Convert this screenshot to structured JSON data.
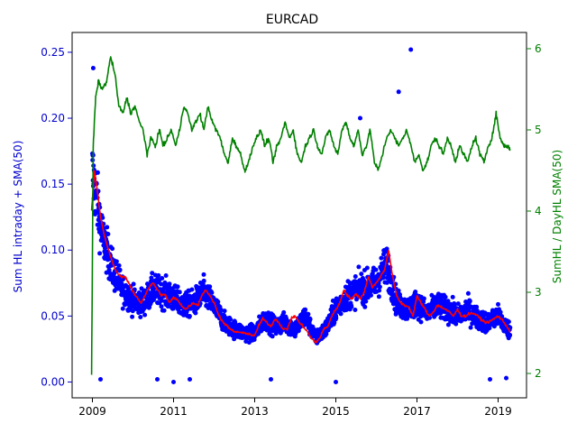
{
  "chart_data": {
    "type": "scatter",
    "title": "EURCAD",
    "xlabel": "",
    "x_ticks": [
      "2009",
      "2011",
      "2013",
      "2015",
      "2017",
      "2019"
    ],
    "xlim": [
      2008.5,
      2019.7
    ],
    "left_axis": {
      "ylabel": "Sum HL intraday + SMA(50)",
      "color": "#0000cc",
      "ylim": [
        -0.012,
        0.265
      ],
      "ticks": [
        "0.00",
        "0.05",
        "0.10",
        "0.15",
        "0.20",
        "0.25"
      ]
    },
    "right_axis": {
      "ylabel": "SumHL / DayHL SMA(50)",
      "color": "#008000",
      "ylim": [
        1.7,
        6.2
      ],
      "ticks": [
        "2",
        "3",
        "4",
        "5",
        "6"
      ]
    },
    "series": [
      {
        "axis": "left",
        "kind": "scatter",
        "color": "#0000ff",
        "trend_x": [
          2009.0,
          2009.1,
          2009.25,
          2009.5,
          2009.75,
          2010.0,
          2010.25,
          2010.5,
          2010.75,
          2011.0,
          2011.25,
          2011.5,
          2011.75,
          2012.0,
          2012.25,
          2012.5,
          2012.75,
          2013.0,
          2013.25,
          2013.5,
          2013.75,
          2014.0,
          2014.25,
          2014.5,
          2014.75,
          2015.0,
          2015.25,
          2015.5,
          2015.75,
          2016.0,
          2016.25,
          2016.5,
          2016.75,
          2017.0,
          2017.25,
          2017.5,
          2017.75,
          2018.0,
          2018.25,
          2018.5,
          2018.75,
          2019.0,
          2019.3
        ],
        "trend_y": [
          0.16,
          0.14,
          0.11,
          0.085,
          0.07,
          0.062,
          0.06,
          0.07,
          0.068,
          0.063,
          0.058,
          0.06,
          0.068,
          0.058,
          0.045,
          0.04,
          0.037,
          0.037,
          0.048,
          0.042,
          0.045,
          0.04,
          0.05,
          0.033,
          0.04,
          0.055,
          0.065,
          0.07,
          0.072,
          0.075,
          0.09,
          0.06,
          0.055,
          0.06,
          0.052,
          0.058,
          0.055,
          0.05,
          0.055,
          0.048,
          0.045,
          0.05,
          0.038
        ]
      },
      {
        "axis": "left",
        "kind": "line",
        "color": "#ff0000",
        "x": [
          2008.98,
          2009.05,
          2009.1,
          2009.2,
          2009.3,
          2009.4,
          2009.5,
          2009.6,
          2009.7,
          2009.8,
          2009.9,
          2010.0,
          2010.1,
          2010.2,
          2010.3,
          2010.4,
          2010.5,
          2010.6,
          2010.7,
          2010.8,
          2010.9,
          2011.0,
          2011.1,
          2011.2,
          2011.3,
          2011.4,
          2011.5,
          2011.6,
          2011.7,
          2011.8,
          2011.9,
          2012.0,
          2012.1,
          2012.2,
          2012.3,
          2012.4,
          2012.5,
          2012.6,
          2012.7,
          2012.8,
          2012.9,
          2013.0,
          2013.1,
          2013.2,
          2013.3,
          2013.4,
          2013.5,
          2013.6,
          2013.7,
          2013.8,
          2013.9,
          2014.0,
          2014.1,
          2014.2,
          2014.3,
          2014.4,
          2014.5,
          2014.6,
          2014.7,
          2014.8,
          2014.9,
          2015.0,
          2015.1,
          2015.2,
          2015.3,
          2015.4,
          2015.5,
          2015.6,
          2015.7,
          2015.8,
          2015.9,
          2016.0,
          2016.1,
          2016.2,
          2016.3,
          2016.4,
          2016.5,
          2016.6,
          2016.7,
          2016.8,
          2016.9,
          2017.0,
          2017.1,
          2017.2,
          2017.3,
          2017.4,
          2017.5,
          2017.6,
          2017.7,
          2017.8,
          2017.9,
          2018.0,
          2018.1,
          2018.2,
          2018.3,
          2018.4,
          2018.5,
          2018.6,
          2018.7,
          2018.8,
          2018.9,
          2019.0,
          2019.1,
          2019.2,
          2019.3
        ],
        "y": [
          0.13,
          0.16,
          0.15,
          0.125,
          0.11,
          0.1,
          0.09,
          0.083,
          0.08,
          0.08,
          0.075,
          0.068,
          0.064,
          0.06,
          0.066,
          0.072,
          0.075,
          0.07,
          0.066,
          0.066,
          0.06,
          0.064,
          0.062,
          0.058,
          0.055,
          0.058,
          0.06,
          0.058,
          0.066,
          0.07,
          0.065,
          0.06,
          0.052,
          0.046,
          0.043,
          0.04,
          0.038,
          0.038,
          0.037,
          0.037,
          0.036,
          0.035,
          0.043,
          0.048,
          0.045,
          0.042,
          0.048,
          0.045,
          0.04,
          0.04,
          0.048,
          0.05,
          0.045,
          0.042,
          0.038,
          0.033,
          0.03,
          0.033,
          0.04,
          0.042,
          0.05,
          0.055,
          0.06,
          0.07,
          0.065,
          0.063,
          0.067,
          0.063,
          0.068,
          0.08,
          0.072,
          0.075,
          0.08,
          0.085,
          0.1,
          0.08,
          0.065,
          0.06,
          0.058,
          0.057,
          0.05,
          0.065,
          0.06,
          0.055,
          0.05,
          0.053,
          0.058,
          0.057,
          0.055,
          0.053,
          0.05,
          0.055,
          0.05,
          0.05,
          0.052,
          0.052,
          0.05,
          0.047,
          0.045,
          0.046,
          0.048,
          0.05,
          0.047,
          0.043,
          0.038
        ]
      },
      {
        "axis": "right",
        "kind": "line",
        "color": "#008000",
        "x": [
          2008.98,
          2009.02,
          2009.08,
          2009.15,
          2009.25,
          2009.35,
          2009.45,
          2009.55,
          2009.65,
          2009.75,
          2009.85,
          2009.95,
          2010.05,
          2010.15,
          2010.25,
          2010.35,
          2010.45,
          2010.55,
          2010.65,
          2010.75,
          2010.85,
          2010.95,
          2011.05,
          2011.15,
          2011.25,
          2011.35,
          2011.45,
          2011.55,
          2011.65,
          2011.75,
          2011.85,
          2011.95,
          2012.05,
          2012.15,
          2012.25,
          2012.35,
          2012.45,
          2012.55,
          2012.65,
          2012.75,
          2012.85,
          2012.95,
          2013.05,
          2013.15,
          2013.25,
          2013.35,
          2013.45,
          2013.55,
          2013.65,
          2013.75,
          2013.85,
          2013.95,
          2014.05,
          2014.15,
          2014.25,
          2014.35,
          2014.45,
          2014.55,
          2014.65,
          2014.75,
          2014.85,
          2014.95,
          2015.05,
          2015.15,
          2015.25,
          2015.35,
          2015.45,
          2015.55,
          2015.65,
          2015.75,
          2015.85,
          2015.95,
          2016.05,
          2016.15,
          2016.25,
          2016.35,
          2016.45,
          2016.55,
          2016.65,
          2016.75,
          2016.85,
          2016.95,
          2017.05,
          2017.15,
          2017.25,
          2017.35,
          2017.45,
          2017.55,
          2017.65,
          2017.75,
          2017.85,
          2017.95,
          2018.05,
          2018.15,
          2018.25,
          2018.35,
          2018.45,
          2018.55,
          2018.65,
          2018.75,
          2018.85,
          2018.95,
          2019.05,
          2019.15,
          2019.25,
          2019.3
        ],
        "y": [
          2.0,
          4.8,
          5.4,
          5.6,
          5.5,
          5.6,
          5.9,
          5.7,
          5.3,
          5.2,
          5.4,
          5.2,
          5.3,
          5.1,
          5.0,
          4.7,
          4.9,
          4.8,
          5.0,
          4.8,
          4.9,
          5.0,
          4.8,
          5.0,
          5.3,
          5.2,
          5.0,
          5.1,
          5.2,
          5.0,
          5.3,
          5.1,
          5.0,
          4.9,
          4.7,
          4.6,
          4.9,
          4.8,
          4.7,
          4.5,
          4.6,
          4.8,
          4.9,
          5.0,
          4.8,
          4.9,
          4.6,
          4.8,
          4.9,
          5.1,
          4.9,
          5.0,
          4.7,
          4.6,
          4.8,
          4.9,
          5.0,
          4.8,
          4.7,
          4.9,
          5.0,
          4.8,
          4.7,
          5.0,
          5.1,
          4.9,
          4.8,
          5.0,
          4.7,
          4.8,
          5.0,
          4.6,
          4.5,
          4.7,
          4.9,
          5.0,
          4.9,
          4.8,
          4.9,
          5.0,
          4.8,
          4.6,
          4.7,
          4.5,
          4.6,
          4.8,
          4.9,
          4.8,
          4.7,
          4.9,
          4.8,
          4.6,
          4.8,
          4.7,
          4.6,
          4.8,
          4.9,
          4.7,
          4.6,
          4.8,
          4.9,
          5.2,
          4.9,
          4.8,
          4.8,
          4.75
        ]
      }
    ],
    "outliers": [
      {
        "x": 2009.02,
        "y": 0.238
      },
      {
        "x": 2015.0,
        "y": 0.0
      },
      {
        "x": 2015.6,
        "y": 0.2
      },
      {
        "x": 2016.55,
        "y": 0.22
      },
      {
        "x": 2016.85,
        "y": 0.252
      },
      {
        "x": 2009.2,
        "y": 0.002
      },
      {
        "x": 2010.6,
        "y": 0.002
      },
      {
        "x": 2011.0,
        "y": 0.0
      },
      {
        "x": 2011.4,
        "y": 0.002
      },
      {
        "x": 2013.4,
        "y": 0.002
      },
      {
        "x": 2018.8,
        "y": 0.002
      },
      {
        "x": 2019.2,
        "y": 0.003
      }
    ]
  }
}
